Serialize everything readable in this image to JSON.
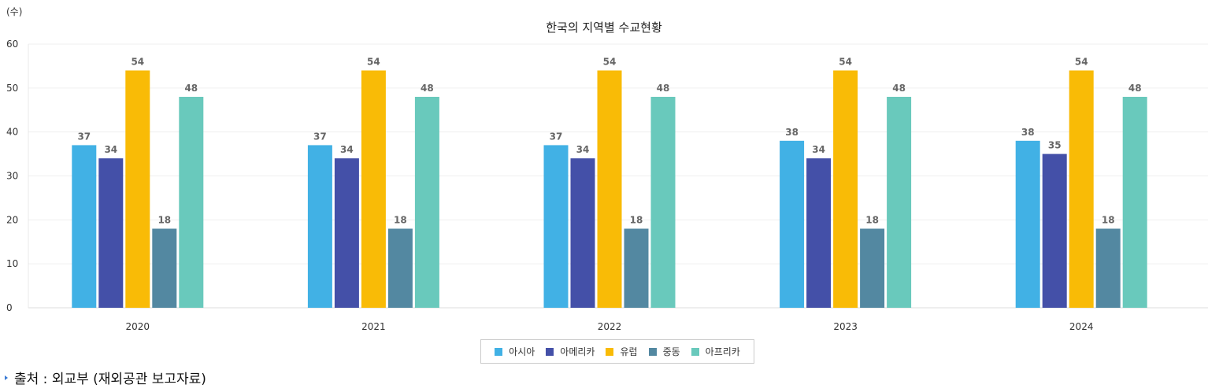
{
  "unit_label": "(수)",
  "title": "한국의 지역별 수교현황",
  "source_text": "출처 : 외교부 (재외공관 보고자료)",
  "chart_data": {
    "type": "bar",
    "title": "한국의 지역별 수교현황",
    "ylabel": "(수)",
    "xlabel": "",
    "ylim": [
      0,
      60
    ],
    "yticks": [
      0,
      10,
      20,
      30,
      40,
      50,
      60
    ],
    "grid": true,
    "legend_position": "bottom",
    "categories": [
      "2020",
      "2021",
      "2022",
      "2023",
      "2024"
    ],
    "series": [
      {
        "name": "아시아",
        "color": "#41b1e5",
        "values": [
          37,
          37,
          37,
          38,
          38
        ]
      },
      {
        "name": "아메리카",
        "color": "#4450a8",
        "values": [
          34,
          34,
          34,
          34,
          35
        ]
      },
      {
        "name": "유럽",
        "color": "#f9bb06",
        "values": [
          54,
          54,
          54,
          54,
          54
        ]
      },
      {
        "name": "중동",
        "color": "#5388a1",
        "values": [
          18,
          18,
          18,
          18,
          18
        ]
      },
      {
        "name": "아프리카",
        "color": "#69c9bc",
        "values": [
          48,
          48,
          48,
          48,
          48
        ]
      }
    ]
  }
}
